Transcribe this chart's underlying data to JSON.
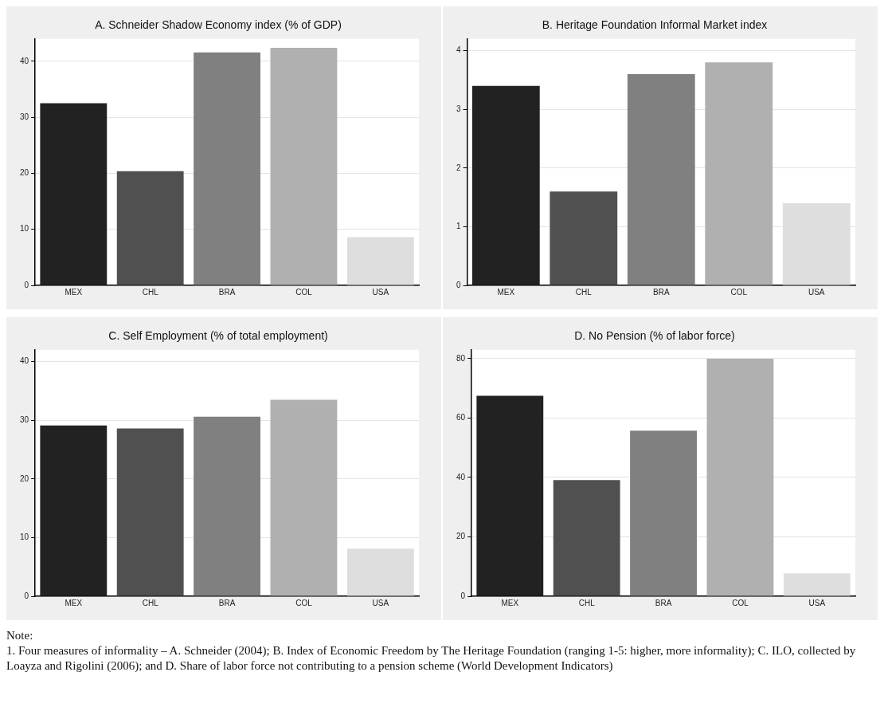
{
  "chart_data": [
    {
      "type": "bar",
      "title": "A. Schneider Shadow Economy index (% of GDP)",
      "categories": [
        "MEX",
        "CHL",
        "BRA",
        "COL",
        "USA"
      ],
      "values": [
        32.5,
        20.4,
        41.6,
        42.4,
        8.6
      ],
      "colors": [
        "#222222",
        "#505050",
        "#808080",
        "#b0b0b0",
        "#dedede"
      ],
      "ylim": [
        0,
        44
      ],
      "yticks": [
        0,
        10,
        20,
        30,
        40
      ],
      "grid": "y",
      "legend": false
    },
    {
      "type": "bar",
      "title": "B. Heritage Foundation Informal Market index",
      "categories": [
        "MEX",
        "CHL",
        "BRA",
        "COL",
        "USA"
      ],
      "values": [
        3.4,
        1.6,
        3.6,
        3.8,
        1.4
      ],
      "colors": [
        "#222222",
        "#505050",
        "#808080",
        "#b0b0b0",
        "#dedede"
      ],
      "ylim": [
        0,
        4.2
      ],
      "yticks": [
        0,
        1,
        2,
        3,
        4
      ],
      "grid": "y",
      "legend": false
    },
    {
      "type": "bar",
      "title": "C. Self Employment (% of total employment)",
      "categories": [
        "MEX",
        "CHL",
        "BRA",
        "COL",
        "USA"
      ],
      "values": [
        29.1,
        28.6,
        30.6,
        33.5,
        8.1
      ],
      "colors": [
        "#222222",
        "#505050",
        "#808080",
        "#b0b0b0",
        "#dedede"
      ],
      "ylim": [
        0,
        42
      ],
      "yticks": [
        0,
        10,
        20,
        30,
        40
      ],
      "grid": "y",
      "legend": false
    },
    {
      "type": "bar",
      "title": "D. No Pension (% of labor force)",
      "categories": [
        "MEX",
        "CHL",
        "BRA",
        "COL",
        "USA"
      ],
      "values": [
        67.5,
        39.1,
        55.8,
        80,
        7.7
      ],
      "colors": [
        "#222222",
        "#505050",
        "#808080",
        "#b0b0b0",
        "#dedede"
      ],
      "ylim": [
        0,
        83
      ],
      "yticks": [
        0,
        20,
        40,
        60,
        80
      ],
      "grid": "y",
      "legend": false,
      "annotations": [
        "Note:",
        "1. Four measures of informality – A. Schneider (2004); B. Index of Economic Freedom by The Heritage Foundation (ranging 1-5: higher, more informality); C. ILO, collected by Loayza and Rigolini (2006); and D. Share of labor force not contributing to a pension scheme (World Development Indicators)"
      ]
    }
  ]
}
